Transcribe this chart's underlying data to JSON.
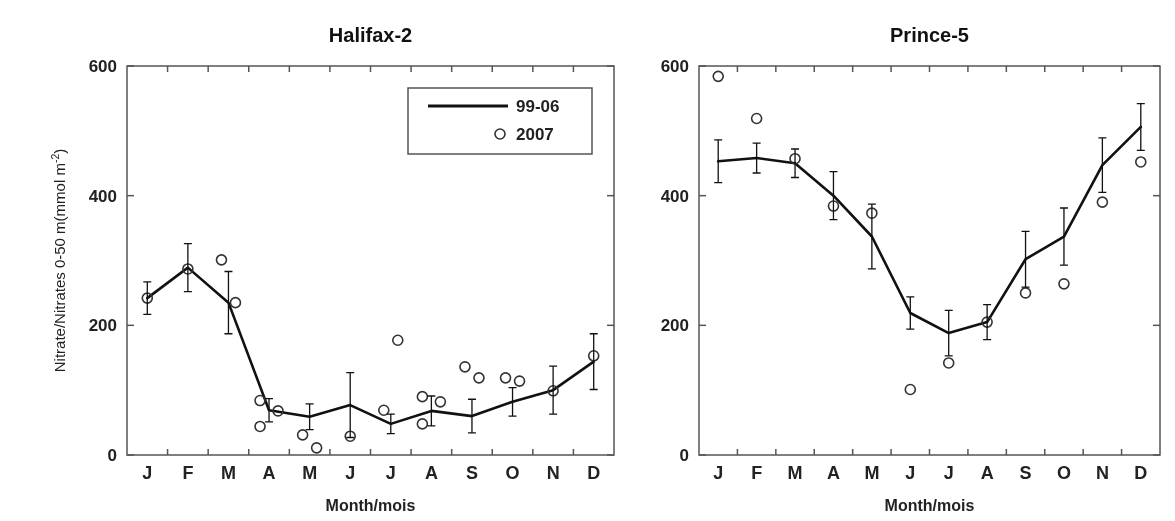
{
  "chart_data": [
    {
      "type": "line",
      "title": "Halifax-2",
      "xlabel": "Month/mois",
      "ylabel": "Nitrate/Nitrates 0-50 m(mmol m$^{-2}$)",
      "categories": [
        "J",
        "F",
        "M",
        "A",
        "M",
        "J",
        "J",
        "A",
        "S",
        "O",
        "N",
        "D"
      ],
      "ylim": [
        0,
        600
      ],
      "yticks": [
        0,
        200,
        400,
        600
      ],
      "legend": "top right",
      "series": [
        {
          "name": "99-06",
          "color": "#111111",
          "values": [
            242,
            289,
            235,
            69,
            59,
            77,
            48,
            68,
            60,
            82,
            100,
            144
          ],
          "errors": [
            25,
            37,
            48,
            18,
            20,
            50,
            15,
            23,
            26,
            22,
            37,
            43
          ]
        },
        {
          "name": "2007",
          "type": "scatter",
          "color": "#333333",
          "marker": "circle",
          "values": [
            242,
            287,
            301,
            84,
            31,
            29,
            69,
            48,
            136,
            119,
            99,
            153
          ]
        },
        {
          "type": "scatter",
          "color": "#333333",
          "marker": "circle",
          "values": [
            null,
            null,
            235,
            68,
            11,
            null,
            177,
            82,
            119,
            114,
            null,
            null
          ]
        },
        {
          "type": "scatter",
          "color": "#333333",
          "marker": "circle",
          "values": [
            null,
            null,
            null,
            44,
            null,
            null,
            null,
            90,
            null,
            null,
            null,
            null
          ]
        }
      ]
    },
    {
      "type": "line",
      "title": "Prince-5",
      "xlabel": "Month/mois",
      "categories": [
        "J",
        "F",
        "M",
        "A",
        "M",
        "J",
        "J",
        "A",
        "S",
        "O",
        "N",
        "D"
      ],
      "ylim": [
        0,
        600
      ],
      "yticks": [
        0,
        200,
        400,
        600
      ],
      "series": [
        {
          "color": "#111111",
          "values": [
            453,
            458,
            450,
            400,
            337,
            219,
            188,
            205,
            302,
            337,
            447,
            506
          ],
          "errors": [
            33,
            23,
            22,
            37,
            50,
            25,
            35,
            27,
            43,
            44,
            42,
            36
          ]
        },
        {
          "type": "scatter",
          "color": "#333333",
          "marker": "circle",
          "values": [
            584,
            519,
            457,
            384,
            373,
            101,
            142,
            205,
            250,
            264,
            390,
            452
          ]
        }
      ]
    }
  ]
}
